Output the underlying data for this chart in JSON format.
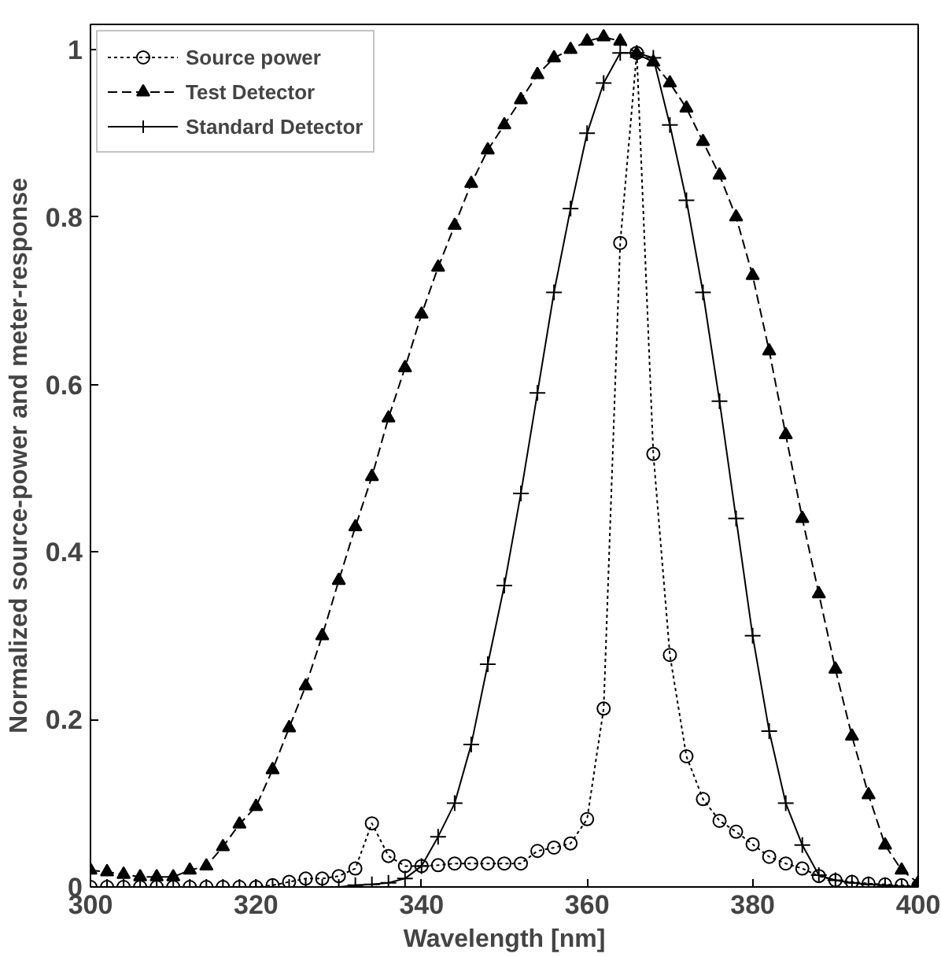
{
  "chart_data": {
    "type": "line",
    "xlabel": "Wavelength [nm]",
    "ylabel": "Normalized source-power and meter-response",
    "x": [
      300,
      302,
      304,
      306,
      308,
      310,
      312,
      314,
      316,
      318,
      320,
      322,
      324,
      326,
      328,
      330,
      332,
      334,
      336,
      338,
      340,
      342,
      344,
      346,
      348,
      350,
      352,
      354,
      356,
      358,
      360,
      362,
      364,
      366,
      368,
      370,
      372,
      374,
      376,
      378,
      380,
      382,
      384,
      386,
      388,
      390,
      392,
      394,
      396,
      398,
      400
    ],
    "series": [
      {
        "name": "Source power",
        "color": "#000000",
        "marker": "circle",
        "line_style": "dotted",
        "values": [
          0,
          0,
          0,
          0,
          0,
          0,
          0,
          0,
          0,
          0,
          0,
          0.002,
          0.006,
          0.01,
          0.01,
          0.013,
          0.022,
          0.076,
          0.037,
          0.025,
          0.025,
          0.026,
          0.028,
          0.028,
          0.028,
          0.028,
          0.028,
          0.043,
          0.047,
          0.052,
          0.081,
          0.213,
          0.769,
          0.996,
          0.517,
          0.277,
          0.156,
          0.105,
          0.079,
          0.066,
          0.051,
          0.036,
          0.028,
          0.022,
          0.013,
          0.008,
          0.006,
          0.004,
          0.003,
          0.002,
          0.001
        ]
      },
      {
        "name": "Test Detector",
        "color": "#000000",
        "marker": "triangle",
        "line_style": "dashed",
        "values": [
          0.02,
          0.018,
          0.015,
          0.012,
          0.012,
          0.012,
          0.02,
          0.025,
          0.048,
          0.075,
          0.096,
          0.14,
          0.19,
          0.24,
          0.3,
          0.366,
          0.43,
          0.49,
          0.56,
          0.62,
          0.684,
          0.74,
          0.79,
          0.84,
          0.88,
          0.91,
          0.94,
          0.97,
          0.99,
          1.0,
          1.01,
          1.015,
          1.01,
          0.995,
          0.985,
          0.96,
          0.93,
          0.89,
          0.85,
          0.8,
          0.73,
          0.64,
          0.54,
          0.44,
          0.35,
          0.26,
          0.18,
          0.11,
          0.05,
          0.02,
          0.005
        ]
      },
      {
        "name": "Standard Detector",
        "color": "#000000",
        "marker": "cross",
        "line_style": "solid",
        "values": [
          0,
          0,
          0,
          0,
          0,
          0,
          0,
          0,
          0,
          0,
          0,
          0,
          0,
          0,
          0,
          0,
          0.002,
          0.003,
          0.005,
          0.01,
          0.025,
          0.06,
          0.1,
          0.17,
          0.266,
          0.36,
          0.47,
          0.59,
          0.71,
          0.81,
          0.9,
          0.96,
          0.996,
          0.996,
          0.99,
          0.91,
          0.82,
          0.71,
          0.58,
          0.44,
          0.3,
          0.186,
          0.1,
          0.05,
          0.014,
          0.008,
          0.005,
          0.003,
          0.002,
          0.001,
          0
        ]
      }
    ],
    "xlim": [
      300,
      400
    ],
    "ylim": [
      0,
      1.03
    ],
    "xticks": [
      300,
      320,
      340,
      360,
      380,
      400
    ],
    "yticks": [
      0,
      0.2,
      0.4,
      0.6,
      0.8,
      1
    ],
    "grid": false,
    "legend": "top left"
  }
}
